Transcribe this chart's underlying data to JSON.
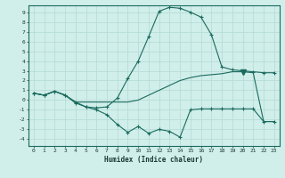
{
  "xlabel": "Humidex (Indice chaleur)",
  "xlim": [
    -0.5,
    23.5
  ],
  "ylim": [
    -4.7,
    9.7
  ],
  "yticks": [
    -4,
    -3,
    -2,
    -1,
    0,
    1,
    2,
    3,
    4,
    5,
    6,
    7,
    8,
    9
  ],
  "xticks": [
    0,
    1,
    2,
    3,
    4,
    5,
    6,
    7,
    8,
    9,
    10,
    11,
    12,
    13,
    14,
    15,
    16,
    17,
    18,
    19,
    20,
    21,
    22,
    23
  ],
  "background_color": "#d0eeea",
  "grid_color": "#b8ddd8",
  "line_color": "#1a6b5e",
  "curve1_x": [
    0,
    1,
    2,
    3,
    4,
    5,
    6,
    7,
    8,
    9,
    10,
    11,
    12,
    13,
    14,
    15,
    16,
    17,
    18,
    19,
    20,
    21,
    22,
    23
  ],
  "curve1_y": [
    0.7,
    0.5,
    0.9,
    0.5,
    -0.3,
    -0.7,
    -0.8,
    -0.7,
    0.2,
    2.2,
    4.0,
    6.5,
    9.1,
    9.5,
    9.4,
    9.0,
    8.5,
    6.7,
    3.4,
    3.1,
    3.0,
    2.9,
    2.8,
    2.8
  ],
  "curve1_markers_x": [
    0,
    1,
    2,
    3,
    4,
    5,
    6,
    7,
    8,
    9,
    10,
    11,
    12,
    13,
    14,
    15,
    16,
    17,
    18,
    19,
    20,
    21,
    22,
    23
  ],
  "curve2_x": [
    0,
    1,
    2,
    3,
    4,
    5,
    6,
    7,
    8,
    9,
    10,
    11,
    12,
    13,
    14,
    15,
    16,
    17,
    18,
    19,
    20,
    21,
    22,
    23
  ],
  "curve2_y": [
    0.7,
    0.5,
    0.9,
    0.5,
    -0.2,
    -0.7,
    -1.0,
    -1.5,
    -2.5,
    -3.3,
    -2.7,
    -3.4,
    -3.0,
    -3.2,
    -3.8,
    -1.0,
    -0.9,
    -0.9,
    -0.9,
    -0.9,
    -0.9,
    -0.9,
    -2.2,
    -2.2
  ],
  "curve2_markers_x": [
    0,
    1,
    2,
    3,
    4,
    5,
    6,
    7,
    8,
    10,
    14,
    22,
    23
  ],
  "curve3_x": [
    0,
    1,
    2,
    3,
    4,
    5,
    6,
    7,
    8,
    9,
    10,
    11,
    12,
    13,
    14,
    15,
    16,
    17,
    18,
    19,
    20,
    21,
    22,
    23
  ],
  "curve3_y": [
    0.7,
    0.5,
    0.9,
    0.5,
    -0.2,
    -0.2,
    -0.2,
    -0.2,
    -0.2,
    -0.2,
    0.0,
    0.5,
    1.0,
    1.5,
    2.0,
    2.3,
    2.5,
    2.6,
    2.7,
    2.9,
    2.9,
    2.8,
    -2.2,
    -2.2
  ],
  "triangle_x": [
    20
  ],
  "triangle_y": [
    2.9
  ]
}
